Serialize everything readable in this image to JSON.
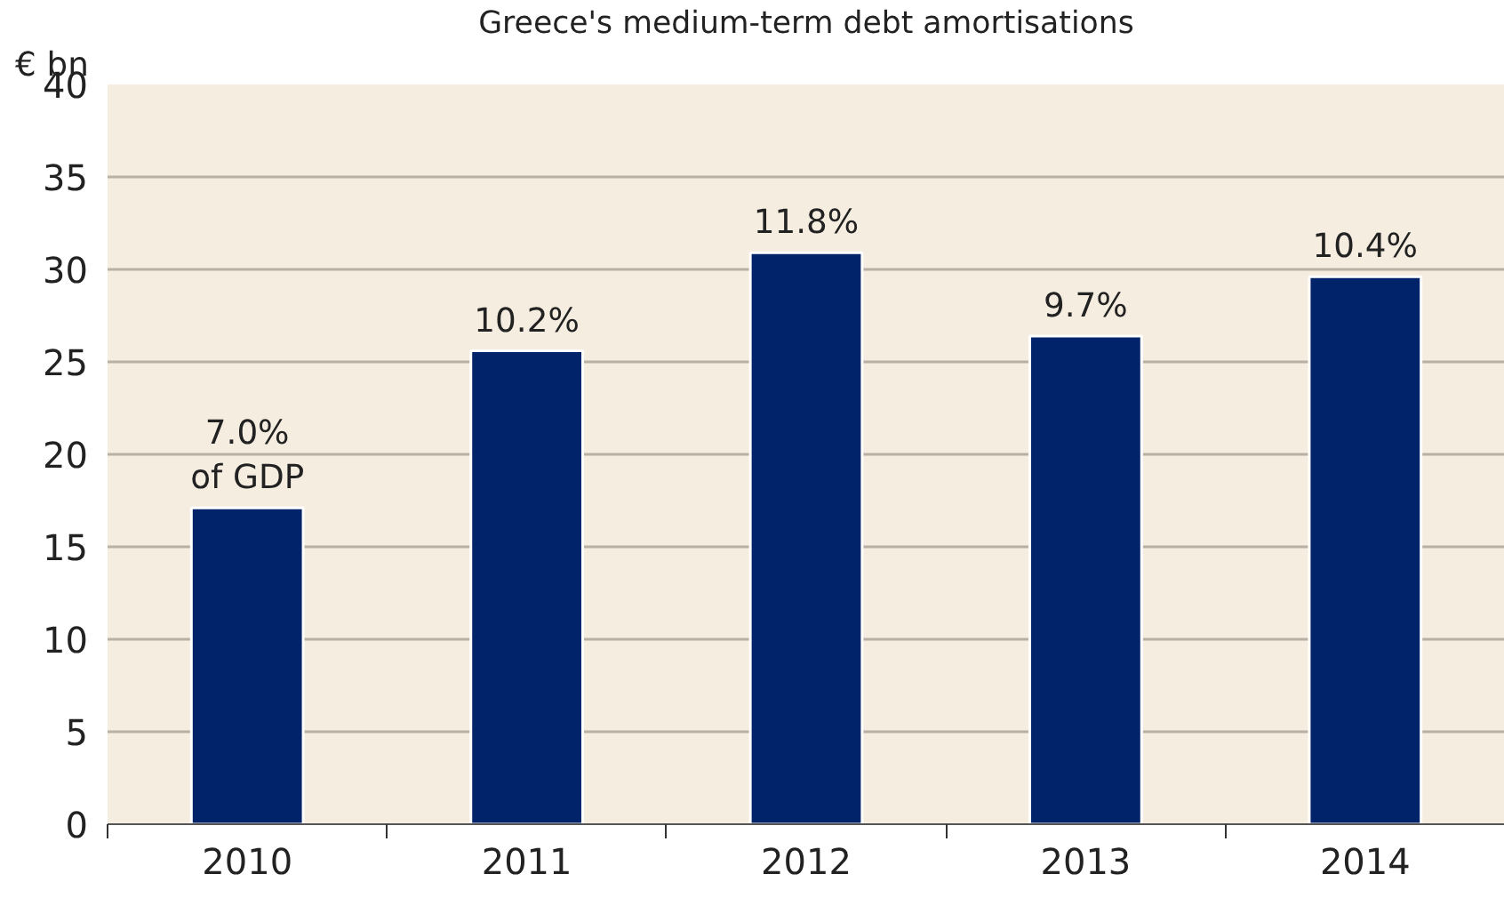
{
  "chart_data": {
    "type": "bar",
    "title": "Greece's medium-term debt amortisations",
    "ylabel": "€ bn",
    "categories": [
      "2010",
      "2011",
      "2012",
      "2013",
      "2014"
    ],
    "values": [
      17.1,
      25.6,
      30.9,
      26.4,
      29.6
    ],
    "annotations": [
      {
        "text": "7.0%\nof GDP",
        "x": "2010",
        "y": 17.1
      },
      {
        "text": "10.2%",
        "x": "2011",
        "y": 25.6
      },
      {
        "text": "11.8%",
        "x": "2012",
        "y": 30.9
      },
      {
        "text": "9.7%",
        "x": "2013",
        "y": 26.4
      },
      {
        "text": "10.4%",
        "x": "2014",
        "y": 29.6
      }
    ],
    "color": "#00236a",
    "ylim": [
      0,
      40
    ],
    "yticks": [
      0,
      5,
      10,
      15,
      20,
      25,
      30,
      35,
      40
    ],
    "grid": "y"
  }
}
